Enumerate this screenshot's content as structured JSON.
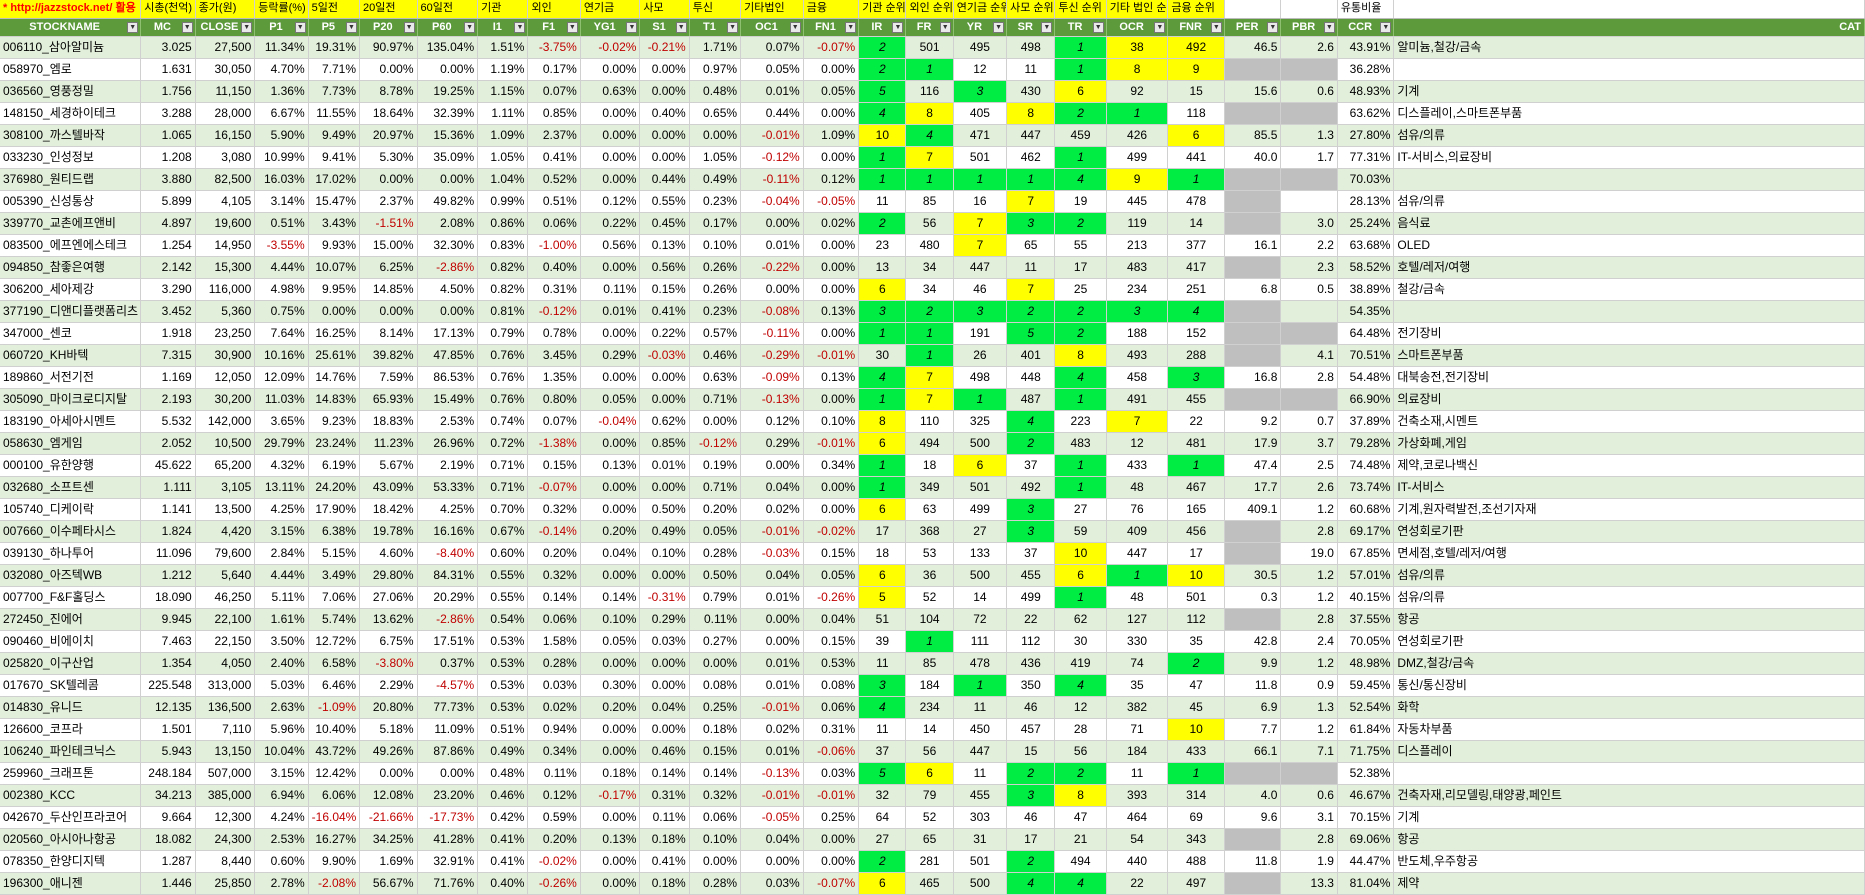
{
  "top_row": [
    "* http://jazzstock.net/ 활용",
    "시총(천억)",
    "종가(원)",
    "등락률(%)",
    "5일전",
    "20일전",
    "60일전",
    "기관",
    "외인",
    "연기금",
    "사모",
    "투신",
    "기타법인",
    "금융",
    "기관 순위",
    "외인 순위",
    "연기금 순위",
    "사모 순위",
    "투신 순위",
    "기타 법인 순위",
    "금융 순위",
    "",
    "",
    "유통비율",
    ""
  ],
  "headers": [
    "STOCKNAME",
    "MC",
    "CLOSE",
    "P1",
    "P5",
    "P20",
    "P60",
    "I1",
    "F1",
    "YG1",
    "S1",
    "T1",
    "OC1",
    "FN1",
    "IR",
    "FR",
    "YR",
    "SR",
    "TR",
    "OCR",
    "FNR",
    "PER",
    "PBR",
    "CCR",
    "CAT"
  ],
  "dropdown_icon": "▼",
  "color_green": "#00ee44",
  "color_yellow": "#ffff00",
  "rows": [
    [
      "006110_삼아알미늄",
      "3.025",
      "27,500",
      "11.34%",
      "19.31%",
      "90.97%",
      "135.04%",
      "1.51%",
      "-3.75%",
      "-0.02%",
      "-0.21%",
      "1.71%",
      "0.07%",
      "-0.07%",
      "2",
      "501",
      "495",
      "498",
      "1",
      "38",
      "492",
      "46.5",
      "2.6",
      "43.91%",
      "알미늄,철강/금속"
    ],
    [
      "058970_엠로",
      "1.631",
      "30,050",
      "4.70%",
      "7.71%",
      "0.00%",
      "0.00%",
      "1.19%",
      "0.17%",
      "0.00%",
      "0.00%",
      "0.97%",
      "0.05%",
      "0.00%",
      "2",
      "1",
      "12",
      "11",
      "1",
      "8",
      "9",
      "",
      "",
      "36.28%",
      ""
    ],
    [
      "036560_영풍정밀",
      "1.756",
      "11,150",
      "1.36%",
      "7.73%",
      "8.78%",
      "19.25%",
      "1.15%",
      "0.07%",
      "0.63%",
      "0.00%",
      "0.48%",
      "0.01%",
      "0.05%",
      "5",
      "116",
      "3",
      "430",
      "6",
      "92",
      "15",
      "15.6",
      "0.6",
      "48.93%",
      "기계"
    ],
    [
      "148150_세경하이테크",
      "3.288",
      "28,000",
      "6.67%",
      "11.55%",
      "18.64%",
      "32.39%",
      "1.11%",
      "0.85%",
      "0.00%",
      "0.40%",
      "0.65%",
      "0.44%",
      "0.00%",
      "4",
      "8",
      "405",
      "8",
      "2",
      "1",
      "118",
      "",
      "",
      "63.62%",
      "디스플레이,스마트폰부품"
    ],
    [
      "308100_까스텔바작",
      "1.065",
      "16,150",
      "5.90%",
      "9.49%",
      "20.97%",
      "15.36%",
      "1.09%",
      "2.37%",
      "0.00%",
      "0.00%",
      "0.00%",
      "-0.01%",
      "1.09%",
      "10",
      "4",
      "471",
      "447",
      "459",
      "426",
      "6",
      "85.5",
      "1.3",
      "27.80%",
      "섬유/의류"
    ],
    [
      "033230_인성정보",
      "1.208",
      "3,080",
      "10.99%",
      "9.41%",
      "5.30%",
      "35.09%",
      "1.05%",
      "0.41%",
      "0.00%",
      "0.00%",
      "1.05%",
      "-0.12%",
      "0.00%",
      "1",
      "7",
      "501",
      "462",
      "1",
      "499",
      "441",
      "40.0",
      "1.7",
      "77.31%",
      "IT-서비스,의료장비"
    ],
    [
      "376980_원티드랩",
      "3.880",
      "82,500",
      "16.03%",
      "17.02%",
      "0.00%",
      "0.00%",
      "1.04%",
      "0.52%",
      "0.00%",
      "0.44%",
      "0.49%",
      "-0.11%",
      "0.12%",
      "1",
      "1",
      "1",
      "1",
      "4",
      "9",
      "1",
      "",
      "",
      "70.03%",
      ""
    ],
    [
      "005390_신성통상",
      "5.899",
      "4,105",
      "3.14%",
      "15.47%",
      "2.37%",
      "49.82%",
      "0.99%",
      "0.51%",
      "0.12%",
      "0.55%",
      "0.23%",
      "-0.04%",
      "-0.05%",
      "11",
      "85",
      "16",
      "7",
      "19",
      "445",
      "478",
      "",
      "",
      "28.13%",
      "섬유/의류"
    ],
    [
      "339770_교촌에프앤비",
      "4.897",
      "19,600",
      "0.51%",
      "3.43%",
      "-1.51%",
      "2.08%",
      "0.86%",
      "0.06%",
      "0.22%",
      "0.45%",
      "0.17%",
      "0.00%",
      "0.02%",
      "2",
      "56",
      "7",
      "3",
      "2",
      "119",
      "14",
      "",
      "3.0",
      "25.24%",
      "음식료"
    ],
    [
      "083500_에프엔에스테크",
      "1.254",
      "14,950",
      "-3.55%",
      "9.93%",
      "15.00%",
      "32.30%",
      "0.83%",
      "-1.00%",
      "0.56%",
      "0.13%",
      "0.10%",
      "0.01%",
      "0.00%",
      "23",
      "480",
      "7",
      "65",
      "55",
      "213",
      "377",
      "16.1",
      "2.2",
      "63.68%",
      "OLED"
    ],
    [
      "094850_참좋은여행",
      "2.142",
      "15,300",
      "4.44%",
      "10.07%",
      "6.25%",
      "-2.86%",
      "0.82%",
      "0.40%",
      "0.00%",
      "0.56%",
      "0.26%",
      "-0.22%",
      "0.00%",
      "13",
      "34",
      "447",
      "11",
      "17",
      "483",
      "417",
      "",
      "2.3",
      "58.52%",
      "호텔/레저/여행"
    ],
    [
      "306200_세아제강",
      "3.290",
      "116,000",
      "4.98%",
      "9.95%",
      "14.85%",
      "4.50%",
      "0.82%",
      "0.31%",
      "0.11%",
      "0.15%",
      "0.26%",
      "0.00%",
      "0.00%",
      "6",
      "34",
      "46",
      "7",
      "25",
      "234",
      "251",
      "6.8",
      "0.5",
      "38.89%",
      "철강/금속"
    ],
    [
      "377190_디앤디플랫폼리츠",
      "3.452",
      "5,360",
      "0.75%",
      "0.00%",
      "0.00%",
      "0.00%",
      "0.81%",
      "-0.12%",
      "0.01%",
      "0.41%",
      "0.23%",
      "-0.08%",
      "0.13%",
      "3",
      "2",
      "3",
      "2",
      "2",
      "3",
      "4",
      "",
      "",
      "54.35%",
      ""
    ],
    [
      "347000_센코",
      "1.918",
      "23,250",
      "7.64%",
      "16.25%",
      "8.14%",
      "17.13%",
      "0.79%",
      "0.78%",
      "0.00%",
      "0.22%",
      "0.57%",
      "-0.11%",
      "0.00%",
      "1",
      "1",
      "191",
      "5",
      "2",
      "188",
      "152",
      "",
      "",
      "64.48%",
      "전기장비"
    ],
    [
      "060720_KH바텍",
      "7.315",
      "30,900",
      "10.16%",
      "25.61%",
      "39.82%",
      "47.85%",
      "0.76%",
      "3.45%",
      "0.29%",
      "-0.03%",
      "0.46%",
      "-0.29%",
      "-0.01%",
      "30",
      "1",
      "26",
      "401",
      "8",
      "493",
      "288",
      "",
      "4.1",
      "70.51%",
      "스마트폰부품"
    ],
    [
      "189860_서전기전",
      "1.169",
      "12,050",
      "12.09%",
      "14.76%",
      "7.59%",
      "86.53%",
      "0.76%",
      "1.35%",
      "0.00%",
      "0.00%",
      "0.63%",
      "-0.09%",
      "0.13%",
      "4",
      "7",
      "498",
      "448",
      "4",
      "458",
      "3",
      "16.8",
      "2.8",
      "54.48%",
      "대북송전,전기장비"
    ],
    [
      "305090_마이크로디지탈",
      "2.193",
      "30,200",
      "11.03%",
      "14.83%",
      "65.93%",
      "15.49%",
      "0.76%",
      "0.80%",
      "0.05%",
      "0.00%",
      "0.71%",
      "-0.13%",
      "0.00%",
      "1",
      "7",
      "1",
      "487",
      "1",
      "491",
      "455",
      "",
      "",
      "66.90%",
      "의료장비"
    ],
    [
      "183190_아세아시멘트",
      "5.532",
      "142,000",
      "3.65%",
      "9.23%",
      "18.83%",
      "2.53%",
      "0.74%",
      "0.07%",
      "-0.04%",
      "0.62%",
      "0.00%",
      "0.12%",
      "0.10%",
      "8",
      "110",
      "325",
      "4",
      "223",
      "7",
      "22",
      "9.2",
      "0.7",
      "37.89%",
      "건축소재,시멘트"
    ],
    [
      "058630_엠게임",
      "2.052",
      "10,500",
      "29.79%",
      "23.24%",
      "11.23%",
      "26.96%",
      "0.72%",
      "-1.38%",
      "0.00%",
      "0.85%",
      "-0.12%",
      "0.29%",
      "-0.01%",
      "6",
      "494",
      "500",
      "2",
      "483",
      "12",
      "481",
      "17.9",
      "3.7",
      "79.28%",
      "가상화폐,게임"
    ],
    [
      "000100_유한양행",
      "45.622",
      "65,200",
      "4.32%",
      "6.19%",
      "5.67%",
      "2.19%",
      "0.71%",
      "0.15%",
      "0.13%",
      "0.01%",
      "0.19%",
      "0.00%",
      "0.34%",
      "1",
      "18",
      "6",
      "37",
      "1",
      "433",
      "1",
      "47.4",
      "2.5",
      "74.48%",
      "제약,코로나백신"
    ],
    [
      "032680_소프트센",
      "1.111",
      "3,105",
      "13.11%",
      "24.20%",
      "43.09%",
      "53.33%",
      "0.71%",
      "-0.07%",
      "0.00%",
      "0.00%",
      "0.71%",
      "0.04%",
      "0.00%",
      "1",
      "349",
      "501",
      "492",
      "1",
      "48",
      "467",
      "17.7",
      "2.6",
      "73.74%",
      "IT-서비스"
    ],
    [
      "105740_디케이락",
      "1.141",
      "13,500",
      "4.25%",
      "17.90%",
      "18.42%",
      "4.25%",
      "0.70%",
      "0.32%",
      "0.00%",
      "0.50%",
      "0.20%",
      "0.02%",
      "0.00%",
      "6",
      "63",
      "499",
      "3",
      "27",
      "76",
      "165",
      "409.1",
      "1.2",
      "60.68%",
      "기계,원자력발전,조선기자재"
    ],
    [
      "007660_이수페타시스",
      "1.824",
      "4,420",
      "3.15%",
      "6.38%",
      "19.78%",
      "16.16%",
      "0.67%",
      "-0.14%",
      "0.20%",
      "0.49%",
      "0.05%",
      "-0.01%",
      "-0.02%",
      "17",
      "368",
      "27",
      "3",
      "59",
      "409",
      "456",
      "",
      "2.8",
      "69.17%",
      "연성회로기판"
    ],
    [
      "039130_하나투어",
      "11.096",
      "79,600",
      "2.84%",
      "5.15%",
      "4.60%",
      "-8.40%",
      "0.60%",
      "0.20%",
      "0.04%",
      "0.10%",
      "0.28%",
      "-0.03%",
      "0.15%",
      "18",
      "53",
      "133",
      "37",
      "10",
      "447",
      "17",
      "",
      "19.0",
      "67.85%",
      "면세점,호텔/레저/여행"
    ],
    [
      "032080_아즈텍WB",
      "1.212",
      "5,640",
      "4.44%",
      "3.49%",
      "29.80%",
      "84.31%",
      "0.55%",
      "0.32%",
      "0.00%",
      "0.00%",
      "0.50%",
      "0.04%",
      "0.05%",
      "6",
      "36",
      "500",
      "455",
      "6",
      "1",
      "10",
      "30.5",
      "1.2",
      "57.01%",
      "섬유/의류"
    ],
    [
      "007700_F&F홀딩스",
      "18.090",
      "46,250",
      "5.11%",
      "7.06%",
      "27.06%",
      "20.29%",
      "0.55%",
      "0.14%",
      "0.14%",
      "-0.31%",
      "0.79%",
      "0.01%",
      "-0.26%",
      "5",
      "52",
      "14",
      "499",
      "1",
      "48",
      "501",
      "0.3",
      "1.2",
      "40.15%",
      "섬유/의류"
    ],
    [
      "272450_진에어",
      "9.945",
      "22,100",
      "1.61%",
      "5.74%",
      "13.62%",
      "-2.86%",
      "0.54%",
      "0.06%",
      "0.10%",
      "0.29%",
      "0.11%",
      "0.00%",
      "0.04%",
      "51",
      "104",
      "72",
      "22",
      "62",
      "127",
      "112",
      "",
      "2.8",
      "37.55%",
      "항공"
    ],
    [
      "090460_비에이치",
      "7.463",
      "22,150",
      "3.50%",
      "12.72%",
      "6.75%",
      "17.51%",
      "0.53%",
      "1.58%",
      "0.05%",
      "0.03%",
      "0.27%",
      "0.00%",
      "0.15%",
      "39",
      "1",
      "111",
      "112",
      "30",
      "330",
      "35",
      "42.8",
      "2.4",
      "70.05%",
      "연성회로기판"
    ],
    [
      "025820_이구산업",
      "1.354",
      "4,050",
      "2.40%",
      "6.58%",
      "-3.80%",
      "0.37%",
      "0.53%",
      "0.28%",
      "0.00%",
      "0.00%",
      "0.00%",
      "0.01%",
      "0.53%",
      "11",
      "85",
      "478",
      "436",
      "419",
      "74",
      "2",
      "9.9",
      "1.2",
      "48.98%",
      "DMZ,철강/금속"
    ],
    [
      "017670_SK텔레콤",
      "225.548",
      "313,000",
      "5.03%",
      "6.46%",
      "2.29%",
      "-4.57%",
      "0.53%",
      "0.03%",
      "0.30%",
      "0.00%",
      "0.08%",
      "0.01%",
      "0.08%",
      "3",
      "184",
      "1",
      "350",
      "4",
      "35",
      "47",
      "11.8",
      "0.9",
      "59.45%",
      "통신/통신장비"
    ],
    [
      "014830_유니드",
      "12.135",
      "136,500",
      "2.63%",
      "-1.09%",
      "20.80%",
      "77.73%",
      "0.53%",
      "0.02%",
      "0.20%",
      "0.04%",
      "0.25%",
      "-0.01%",
      "0.06%",
      "4",
      "234",
      "11",
      "46",
      "12",
      "382",
      "45",
      "6.9",
      "1.3",
      "52.54%",
      "화학"
    ],
    [
      "126600_코프라",
      "1.501",
      "7,110",
      "5.96%",
      "10.40%",
      "5.18%",
      "11.09%",
      "0.51%",
      "0.94%",
      "0.00%",
      "0.00%",
      "0.18%",
      "0.02%",
      "0.31%",
      "11",
      "14",
      "450",
      "457",
      "28",
      "71",
      "10",
      "7.7",
      "1.2",
      "61.84%",
      "자동차부품"
    ],
    [
      "106240_파인테크닉스",
      "5.943",
      "13,150",
      "10.04%",
      "43.72%",
      "49.26%",
      "87.86%",
      "0.49%",
      "0.34%",
      "0.00%",
      "0.46%",
      "0.15%",
      "0.01%",
      "-0.06%",
      "37",
      "56",
      "447",
      "15",
      "56",
      "184",
      "433",
      "66.1",
      "7.1",
      "71.75%",
      "디스플레이"
    ],
    [
      "259960_크래프톤",
      "248.184",
      "507,000",
      "3.15%",
      "12.42%",
      "0.00%",
      "0.00%",
      "0.48%",
      "0.11%",
      "0.18%",
      "0.14%",
      "0.14%",
      "-0.13%",
      "0.03%",
      "5",
      "6",
      "11",
      "2",
      "2",
      "11",
      "1",
      "",
      "",
      "52.38%",
      ""
    ],
    [
      "002380_KCC",
      "34.213",
      "385,000",
      "6.94%",
      "6.06%",
      "12.08%",
      "23.20%",
      "0.46%",
      "0.12%",
      "-0.17%",
      "0.31%",
      "0.32%",
      "-0.01%",
      "-0.01%",
      "32",
      "79",
      "455",
      "3",
      "8",
      "393",
      "314",
      "4.0",
      "0.6",
      "46.67%",
      "건축자재,리모델링,태양광,페인트"
    ],
    [
      "042670_두산인프라코어",
      "9.664",
      "12,300",
      "4.24%",
      "-16.04%",
      "-21.66%",
      "-17.73%",
      "0.42%",
      "0.59%",
      "0.00%",
      "0.11%",
      "0.06%",
      "-0.05%",
      "0.25%",
      "64",
      "52",
      "303",
      "46",
      "47",
      "464",
      "69",
      "9.6",
      "3.1",
      "70.15%",
      "기계"
    ],
    [
      "020560_아시아나항공",
      "18.082",
      "24,300",
      "2.53%",
      "16.27%",
      "34.25%",
      "41.28%",
      "0.41%",
      "0.20%",
      "0.13%",
      "0.18%",
      "0.10%",
      "0.04%",
      "0.00%",
      "27",
      "65",
      "31",
      "17",
      "21",
      "54",
      "343",
      "",
      "2.8",
      "69.06%",
      "항공"
    ],
    [
      "078350_한양디지텍",
      "1.287",
      "8,440",
      "0.60%",
      "9.90%",
      "1.69%",
      "32.91%",
      "0.41%",
      "-0.02%",
      "0.00%",
      "0.41%",
      "0.00%",
      "0.00%",
      "0.00%",
      "2",
      "281",
      "501",
      "2",
      "494",
      "440",
      "488",
      "11.8",
      "1.9",
      "44.47%",
      "반도체,우주항공"
    ],
    [
      "196300_애니젠",
      "1.446",
      "25,850",
      "2.78%",
      "-2.08%",
      "56.67%",
      "71.76%",
      "0.40%",
      "-0.26%",
      "0.00%",
      "0.18%",
      "0.28%",
      "0.03%",
      "-0.07%",
      "6",
      "465",
      "500",
      "4",
      "4",
      "22",
      "497",
      "",
      "13.3",
      "81.04%",
      "제약"
    ]
  ],
  "rank_colors": [
    [
      "g",
      "",
      "",
      "",
      "g",
      "y",
      "y"
    ],
    [
      "g",
      "g",
      "",
      "",
      "g",
      "y",
      "y"
    ],
    [
      "g",
      "",
      "g",
      "",
      "y",
      "",
      ""
    ],
    [
      "g",
      "y",
      "",
      "y",
      "g",
      "g",
      ""
    ],
    [
      "y",
      "g",
      "",
      "",
      "",
      "",
      "y"
    ],
    [
      "g",
      "y",
      "",
      "",
      "g",
      "",
      ""
    ],
    [
      "g",
      "g",
      "g",
      "g",
      "g",
      "y",
      "g"
    ],
    [
      "",
      "",
      "",
      "y",
      "",
      "",
      ""
    ],
    [
      "g",
      "",
      "y",
      "g",
      "g",
      "",
      ""
    ],
    [
      "",
      "",
      "y",
      "",
      "",
      "",
      ""
    ],
    [
      "",
      "",
      "",
      "",
      "",
      "",
      ""
    ],
    [
      "y",
      "",
      "",
      "y",
      "",
      "",
      ""
    ],
    [
      "g",
      "g",
      "g",
      "g",
      "g",
      "g",
      "g"
    ],
    [
      "g",
      "g",
      "",
      "g",
      "g",
      "",
      ""
    ],
    [
      "",
      "g",
      "",
      "",
      "y",
      "",
      ""
    ],
    [
      "g",
      "y",
      "",
      "",
      "g",
      "",
      "g"
    ],
    [
      "g",
      "y",
      "g",
      "",
      "g",
      "",
      ""
    ],
    [
      "y",
      "",
      "",
      "g",
      "",
      "y",
      ""
    ],
    [
      "y",
      "",
      "",
      "g",
      "",
      "",
      ""
    ],
    [
      "g",
      "",
      "y",
      "",
      "g",
      "",
      "g"
    ],
    [
      "g",
      "",
      "",
      "",
      "g",
      "",
      ""
    ],
    [
      "y",
      "",
      "",
      "g",
      "",
      "",
      ""
    ],
    [
      "",
      "",
      "",
      "g",
      "",
      "",
      ""
    ],
    [
      "",
      "",
      "",
      "",
      "y",
      "",
      ""
    ],
    [
      "y",
      "",
      "",
      "",
      "y",
      "g",
      "y"
    ],
    [
      "y",
      "",
      "",
      "",
      "g",
      "",
      ""
    ],
    [
      "",
      "",
      "",
      "",
      "",
      "",
      ""
    ],
    [
      "",
      "g",
      "",
      "",
      "",
      "",
      ""
    ],
    [
      "",
      "",
      "",
      "",
      "",
      "",
      "g"
    ],
    [
      "g",
      "",
      "g",
      "",
      "g",
      "",
      ""
    ],
    [
      "g",
      "",
      "",
      "",
      "",
      "",
      ""
    ],
    [
      "",
      "",
      "",
      "",
      "",
      "",
      "y"
    ],
    [
      "",
      "",
      "",
      "",
      "",
      "",
      ""
    ],
    [
      "g",
      "y",
      "",
      "g",
      "g",
      "",
      "g"
    ],
    [
      "",
      "",
      "",
      "g",
      "y",
      "",
      ""
    ],
    [
      "",
      "",
      "",
      "",
      "",
      "",
      ""
    ],
    [
      "",
      "",
      "",
      "",
      "",
      "",
      ""
    ],
    [
      "g",
      "",
      "",
      "g",
      "",
      "",
      ""
    ],
    [
      "y",
      "",
      "",
      "g",
      "g",
      "",
      ""
    ]
  ],
  "gray_cells": {
    "per": [
      1,
      3,
      6,
      7,
      8,
      10,
      12,
      13,
      14,
      16,
      22,
      23,
      26,
      33,
      36,
      38
    ],
    "pbr": [
      1,
      3,
      6,
      13,
      16,
      33
    ]
  }
}
